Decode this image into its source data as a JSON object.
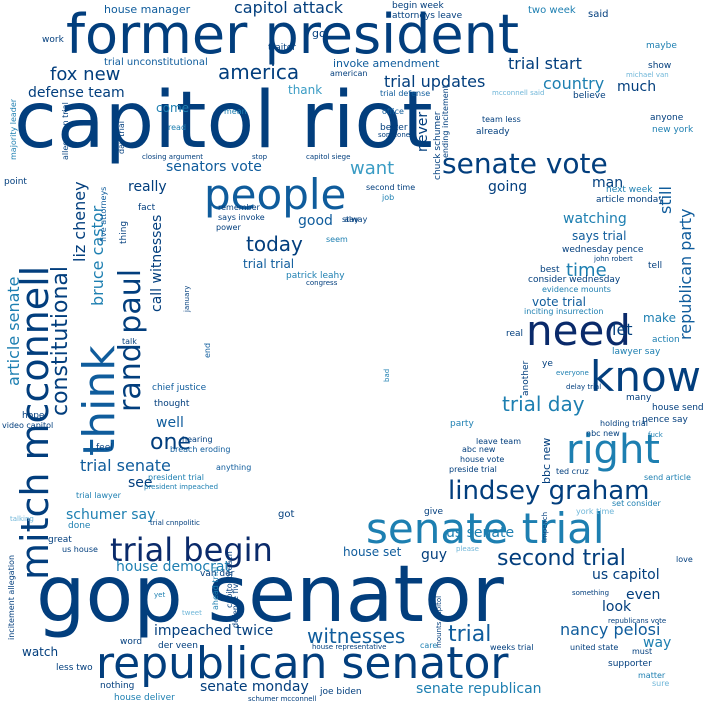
{
  "words": [
    "capitol riot",
    "gop senator",
    "former president",
    "republican senator",
    "senate trial",
    "know",
    "need",
    "right",
    "people",
    "think",
    "mitch mcconnell",
    "rand paul",
    "trial begin",
    "lindsey graham",
    "senate vote",
    "second trial",
    "constitutional",
    "today",
    "nancy pelosi",
    "witnesses",
    "trial",
    "impeached twice",
    "capitol attack",
    "america",
    "fox new",
    "trial start",
    "trial updates",
    "country",
    "defense team",
    "trial senate",
    "trial day",
    "us senate",
    "us capitol",
    "liz cheney",
    "bruce castor",
    "article senate",
    "republican party",
    "one",
    "well",
    "see",
    "schumer say",
    "house democrat",
    "senate monday",
    "senate republican",
    "watch",
    "look",
    "even",
    "let",
    "still",
    "time",
    "want",
    "senators vote",
    "really",
    "good",
    "call witnesses",
    "trial trial",
    "watching",
    "says trial",
    "vote trial",
    "make",
    "much",
    "thank",
    "come",
    "going",
    "man",
    "never",
    "house set",
    "guy",
    "way",
    "house manager",
    "trial unconstitutional",
    "invoke amendment",
    "work",
    "go",
    "traitor",
    "american",
    "begin week",
    "attorneys leave",
    "two week",
    "said",
    "maybe",
    "show",
    "michael van",
    "believe",
    "mcconnell said",
    "trial defense",
    "office",
    "team less",
    "anyone",
    "new york",
    "read",
    "mean",
    "closing argument",
    "stop",
    "capitol siege",
    "majority leader",
    "allegation trial",
    "day trial",
    "fact",
    "thing",
    "five attorneys",
    "second time",
    "chuck schumer",
    "ending incitement",
    "next week",
    "article monday",
    "says invoke",
    "power",
    "alway",
    "seem",
    "patrick leahy",
    "congress",
    "john robert",
    "wednesday pence",
    "consider wednesday",
    "evidence mounts",
    "inciting insurrection",
    "best",
    "tell",
    "action",
    "lawyer say",
    "ye",
    "everyone",
    "another",
    "delay trial",
    "many",
    "house send",
    "pence say",
    "fuck",
    "holding trial",
    "nbc new",
    "abc new",
    "bbc new",
    "house vote",
    "preside trial",
    "leave team",
    "ted cruz",
    "send article",
    "set consider",
    "york time",
    "impeach",
    "please",
    "love",
    "something",
    "republicans vote",
    "must",
    "matter",
    "sure",
    "supporter",
    "united state",
    "weeks trial",
    "mounts capitol",
    "care",
    "house representative",
    "joe biden",
    "schumer mcconnell",
    "house deliver",
    "nothing",
    "less two",
    "word",
    "der veen",
    "van der",
    "defense five",
    "capitol breach",
    "ahead trial",
    "tweet",
    "yet",
    "great",
    "us house",
    "incitement allegation",
    "talking",
    "done",
    "trial lawyer",
    "president impeached",
    "president trial",
    "trial cnnpolitic",
    "got",
    "give",
    "party",
    "anything",
    "breach eroding",
    "hearing",
    "feel",
    "video capitol",
    "hope",
    "thought",
    "chief justice",
    "talk",
    "end",
    "remember",
    "january",
    "bad",
    "real",
    "already",
    "better",
    "point",
    "someone",
    "job",
    "stay"
  ]
}
